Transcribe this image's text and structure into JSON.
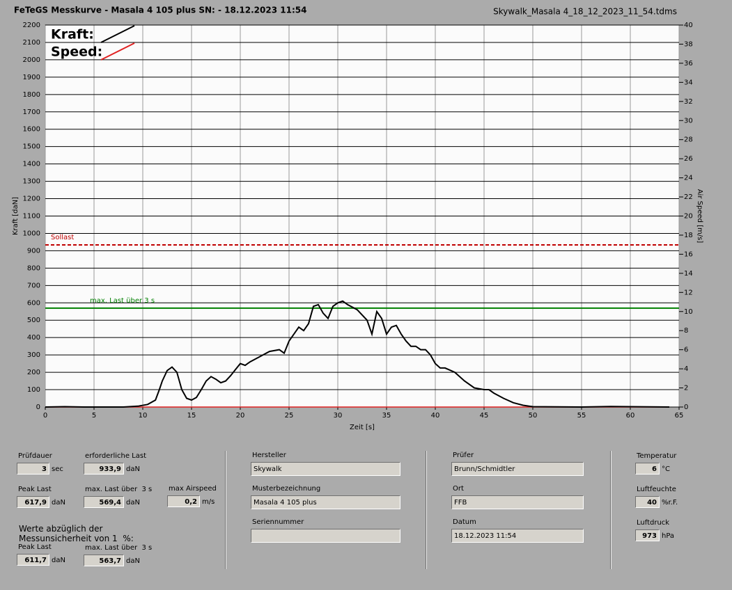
{
  "header": {
    "title": "FeTeGS Messkurve - Masala 4 105 plus  SN:  - 18.12.2023 11:54",
    "file": "Skywalk_Masala 4_18_12_2023_11_54.tdms"
  },
  "chart_data": {
    "type": "line",
    "x_label": "Zeit [s]",
    "y_label": "Kraft [daN]",
    "y2_label": "Air Speed [m/s]",
    "xlim": [
      0,
      65
    ],
    "xticks": [
      0,
      5,
      10,
      15,
      20,
      25,
      30,
      35,
      40,
      45,
      50,
      55,
      60,
      65
    ],
    "ylim": [
      0,
      2200
    ],
    "yticks": [
      0,
      100,
      200,
      300,
      400,
      500,
      600,
      700,
      800,
      900,
      1000,
      1100,
      1200,
      1300,
      1400,
      1500,
      1600,
      1700,
      1800,
      1900,
      2000,
      2100,
      2200
    ],
    "y2lim": [
      0,
      40
    ],
    "y2ticks": [
      0,
      2,
      4,
      6,
      8,
      10,
      12,
      14,
      16,
      18,
      20,
      22,
      24,
      26,
      28,
      30,
      32,
      34,
      36,
      38,
      40
    ],
    "grid": true,
    "series": [
      {
        "name": "Kraft:",
        "color": "#000000",
        "x": [
          0,
          2,
          4,
          8,
          9.5,
          10.5,
          11.3,
          11.7,
          12,
          12.5,
          13,
          13.5,
          14,
          14.5,
          15,
          15.5,
          16,
          16.5,
          17,
          17.5,
          18,
          18.5,
          19,
          19.5,
          20,
          20.5,
          21,
          22,
          23,
          24,
          24.5,
          25,
          25.5,
          26,
          26.5,
          27,
          27.5,
          28,
          28.5,
          29,
          29.5,
          30,
          30.5,
          31,
          32,
          33,
          33.5,
          34,
          34.5,
          35,
          35.5,
          36,
          36.5,
          37,
          37.5,
          38,
          38.5,
          39,
          39.5,
          40,
          40.5,
          41,
          42,
          43,
          44,
          45,
          45.5,
          46,
          47,
          48,
          49,
          50,
          55,
          58,
          64
        ],
        "values": [
          0,
          2,
          0,
          0,
          5,
          15,
          40,
          100,
          150,
          210,
          230,
          200,
          100,
          50,
          40,
          55,
          100,
          150,
          175,
          160,
          140,
          150,
          180,
          215,
          250,
          240,
          260,
          290,
          320,
          330,
          310,
          380,
          420,
          460,
          440,
          480,
          580,
          590,
          540,
          510,
          580,
          600,
          610,
          590,
          560,
          500,
          420,
          550,
          510,
          420,
          460,
          470,
          420,
          380,
          350,
          350,
          330,
          330,
          300,
          250,
          225,
          225,
          200,
          150,
          110,
          100,
          100,
          80,
          50,
          25,
          10,
          2,
          0,
          3,
          0
        ]
      },
      {
        "name": "Speed:",
        "color": "#e02020",
        "axis": "y2",
        "x": [
          0,
          64
        ],
        "values": [
          0,
          0
        ]
      }
    ],
    "reference_lines": [
      {
        "label": "Sollast",
        "value": 933.9,
        "color": "#c00000",
        "dashed": true
      },
      {
        "label": "max. Last über  3 s",
        "value": 569.4,
        "color": "#008000",
        "dashed": false
      }
    ]
  },
  "fields": [
    {
      "label": "Prüfdauer",
      "value": "3",
      "unit": "sec"
    },
    {
      "label": "erforderliche Last",
      "value": "933,9",
      "unit": "daN"
    },
    {
      "label": "Peak Last",
      "value": "617,9",
      "unit": "daN"
    },
    {
      "label": "max. Last über  3 s",
      "value": "569,4",
      "unit": "daN"
    },
    {
      "label": "max Airspeed",
      "value": "0,2",
      "unit": "m/s"
    },
    {
      "label": "Peak Last",
      "value": "611,7",
      "unit": "daN"
    },
    {
      "label": "max. Last über  3 s",
      "value": "563,7",
      "unit": "daN"
    },
    {
      "label": "Hersteller",
      "value": "Skywalk"
    },
    {
      "label": "Musterbezeichnung",
      "value": "Masala 4 105 plus"
    },
    {
      "label": "Seriennummer"
    },
    {
      "label": "Prüfer",
      "value": "Brunn/Schmidtler"
    },
    {
      "label": "Ort",
      "value": "FFB"
    },
    {
      "label": "Datum",
      "value": "18.12.2023 11:54"
    },
    {
      "label": "Temperatur",
      "value": "6",
      "unit": "°C"
    },
    {
      "label": "Luftfeuchte",
      "value": "40",
      "unit": "%r.F."
    },
    {
      "label": "Luftdruck",
      "value": "973",
      "unit": "hPa"
    }
  ],
  "note": [
    "Werte abzüglich der",
    "Messunsicherheit von 1  %:"
  ]
}
